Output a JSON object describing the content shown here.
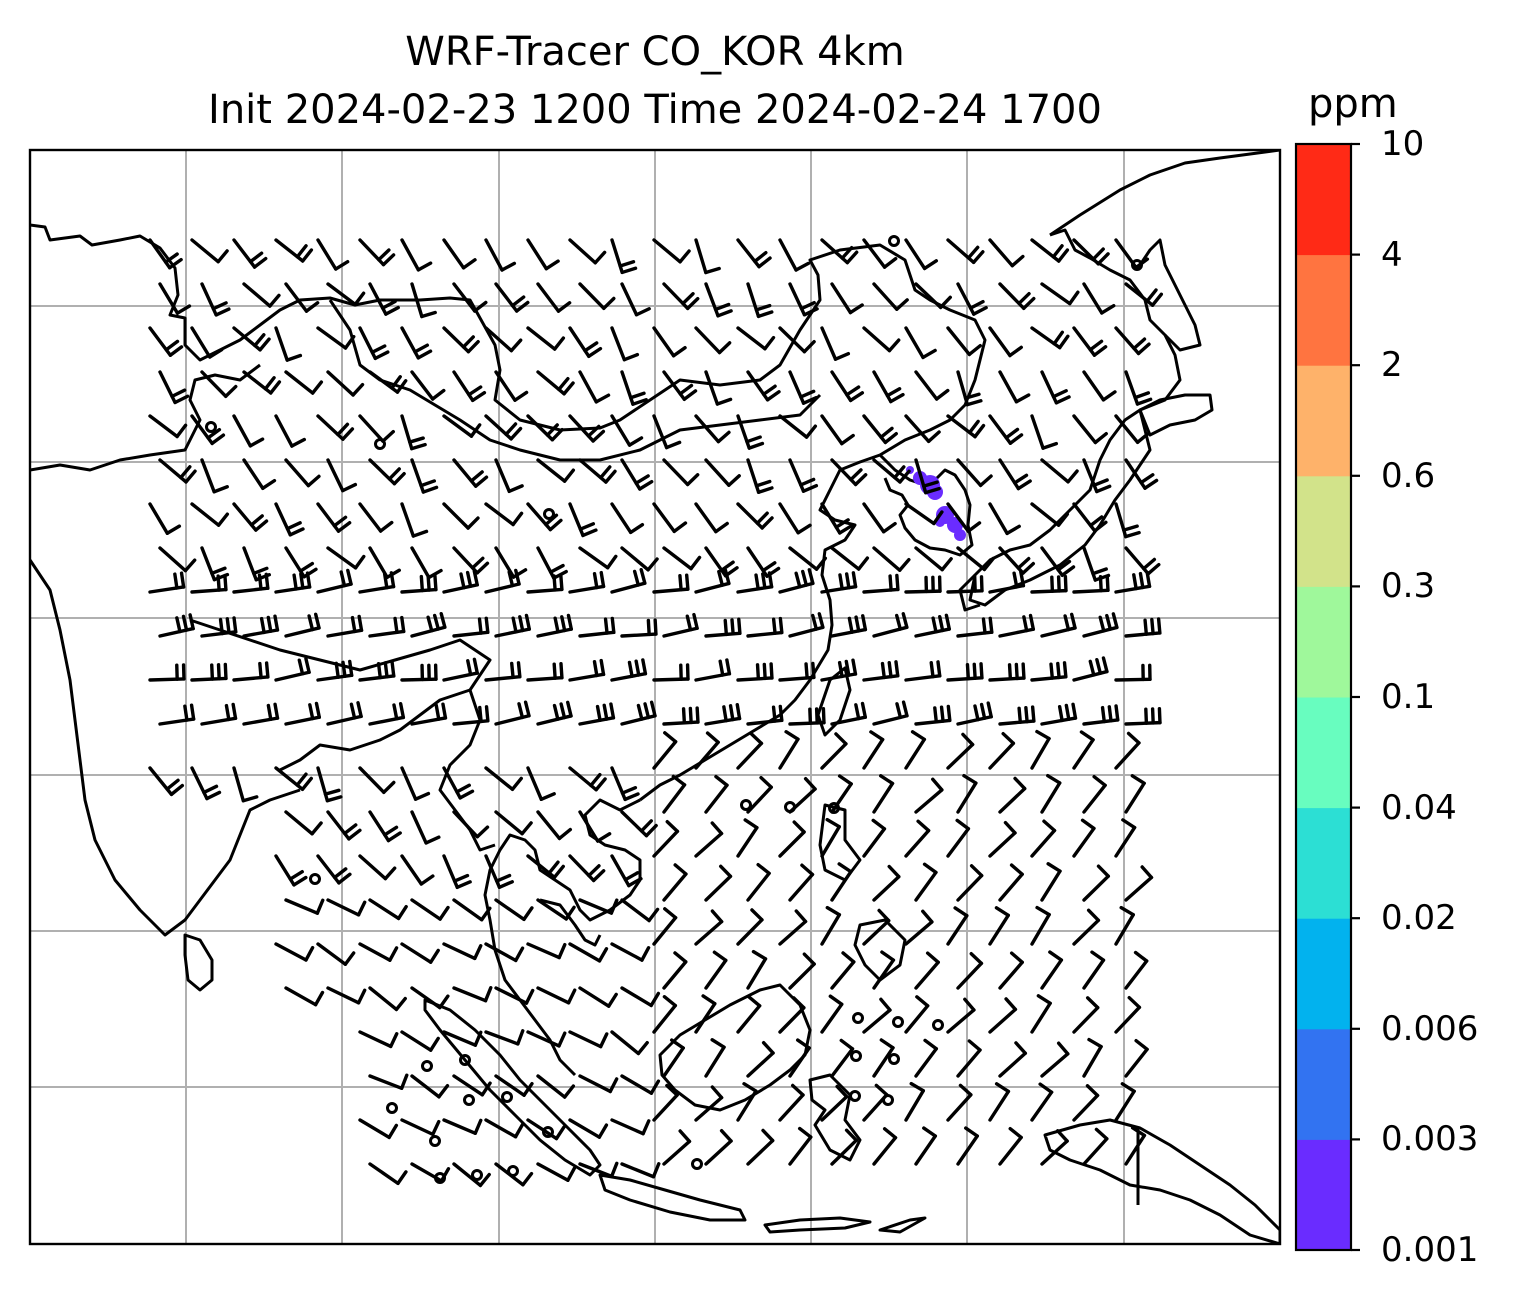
{
  "title": {
    "line1": "WRF-Tracer CO_KOR 4km",
    "line2": "Init 2024-02-23 1200 Time 2024-02-24 1700"
  },
  "map": {
    "type": "wind-barb-map-with-tracer-concentration",
    "gridlines": true,
    "grid_color": "#b0b0b0",
    "coastline_color": "#000000",
    "region": "East and Southeast Asia, India, Indonesia, Japan",
    "tracer_highlight": "Korean peninsula",
    "tracer_color": "#6a2cff"
  },
  "colorbar": {
    "unit": "ppm",
    "levels": [
      "0.001",
      "0.003",
      "0.006",
      "0.02",
      "0.04",
      "0.1",
      "0.3",
      "0.6",
      "2",
      "4",
      "10"
    ],
    "colors": [
      "#6a2cff",
      "#3273f1",
      "#02b2ee",
      "#2cdfd4",
      "#68fdbf",
      "#9ff89b",
      "#d2e38a",
      "#feb26a",
      "#ff7440",
      "#ff2a16"
    ]
  }
}
